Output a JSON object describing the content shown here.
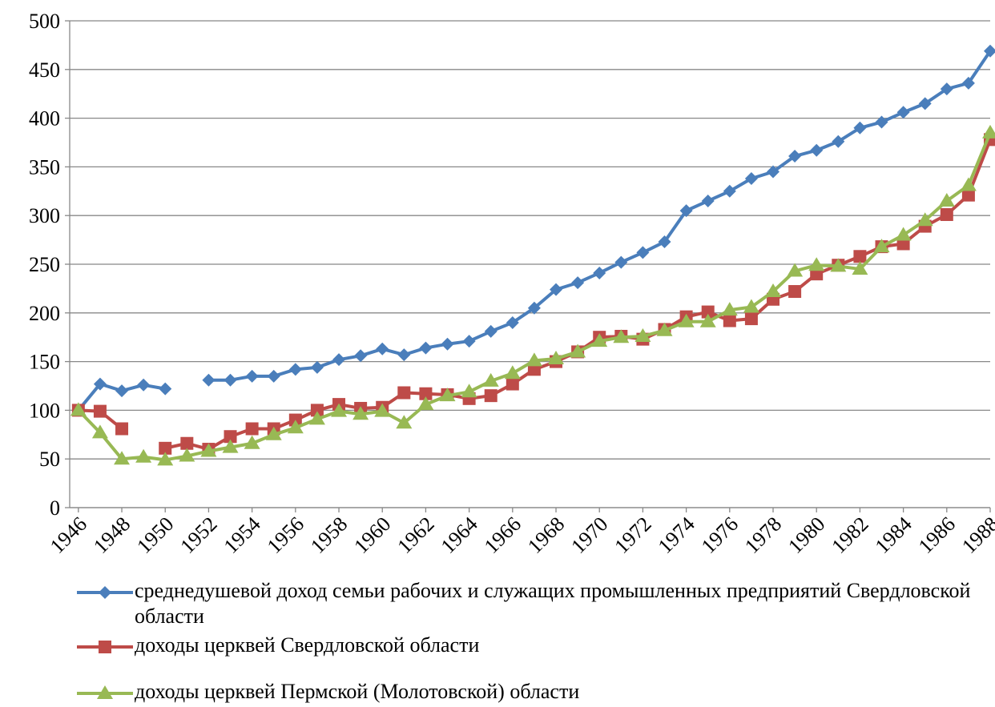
{
  "chart_data": {
    "type": "line",
    "x": [
      1946,
      1947,
      1948,
      1949,
      1950,
      1951,
      1952,
      1953,
      1954,
      1955,
      1956,
      1957,
      1958,
      1959,
      1960,
      1961,
      1962,
      1963,
      1964,
      1965,
      1966,
      1967,
      1968,
      1969,
      1970,
      1971,
      1972,
      1973,
      1974,
      1975,
      1976,
      1977,
      1978,
      1979,
      1980,
      1981,
      1982,
      1983,
      1984,
      1985,
      1986,
      1987,
      1988
    ],
    "xlim": [
      1945.6,
      1988
    ],
    "xticks": [
      1946,
      1948,
      1950,
      1952,
      1954,
      1956,
      1958,
      1960,
      1962,
      1964,
      1966,
      1968,
      1970,
      1972,
      1974,
      1976,
      1978,
      1980,
      1982,
      1984,
      1986,
      1988
    ],
    "ylim": [
      0,
      500
    ],
    "yticks": [
      0,
      50,
      100,
      150,
      200,
      250,
      300,
      350,
      400,
      450,
      500
    ],
    "grid": true,
    "legend": "bottom",
    "series": [
      {
        "name": "среднедушевой доход семьи рабочих и служащих промышленных предприятий Свердловской области",
        "color": "#4a7ebb",
        "marker": "diamond",
        "values": [
          100,
          127,
          120,
          126,
          122,
          null,
          131,
          131,
          135,
          135,
          142,
          144,
          152,
          156,
          163,
          157,
          164,
          168,
          171,
          181,
          190,
          205,
          224,
          231,
          241,
          252,
          262,
          273,
          305,
          315,
          325,
          338,
          345,
          361,
          367,
          376,
          390,
          396,
          406,
          415,
          430,
          436,
          469
        ]
      },
      {
        "name": "доходы церквей Свердловской области",
        "color": "#be4b48",
        "marker": "square",
        "values": [
          100,
          99,
          81,
          null,
          61,
          66,
          60,
          73,
          81,
          81,
          90,
          100,
          106,
          102,
          103,
          118,
          117,
          116,
          112,
          115,
          127,
          142,
          150,
          160,
          175,
          176,
          173,
          183,
          196,
          201,
          192,
          194,
          214,
          222,
          240,
          249,
          258,
          268,
          271,
          289,
          301,
          321,
          378
        ]
      },
      {
        "name": "доходы церквей Пермской (Молотовской) области",
        "color": "#98b954",
        "marker": "triangle",
        "values": [
          100,
          77,
          50,
          52,
          49,
          53,
          58,
          62,
          66,
          75,
          82,
          91,
          99,
          96,
          99,
          87,
          106,
          115,
          119,
          130,
          138,
          151,
          153,
          160,
          171,
          175,
          176,
          182,
          191,
          191,
          203,
          206,
          222,
          243,
          249,
          248,
          245,
          268,
          280,
          295,
          315,
          331,
          385
        ]
      }
    ]
  }
}
